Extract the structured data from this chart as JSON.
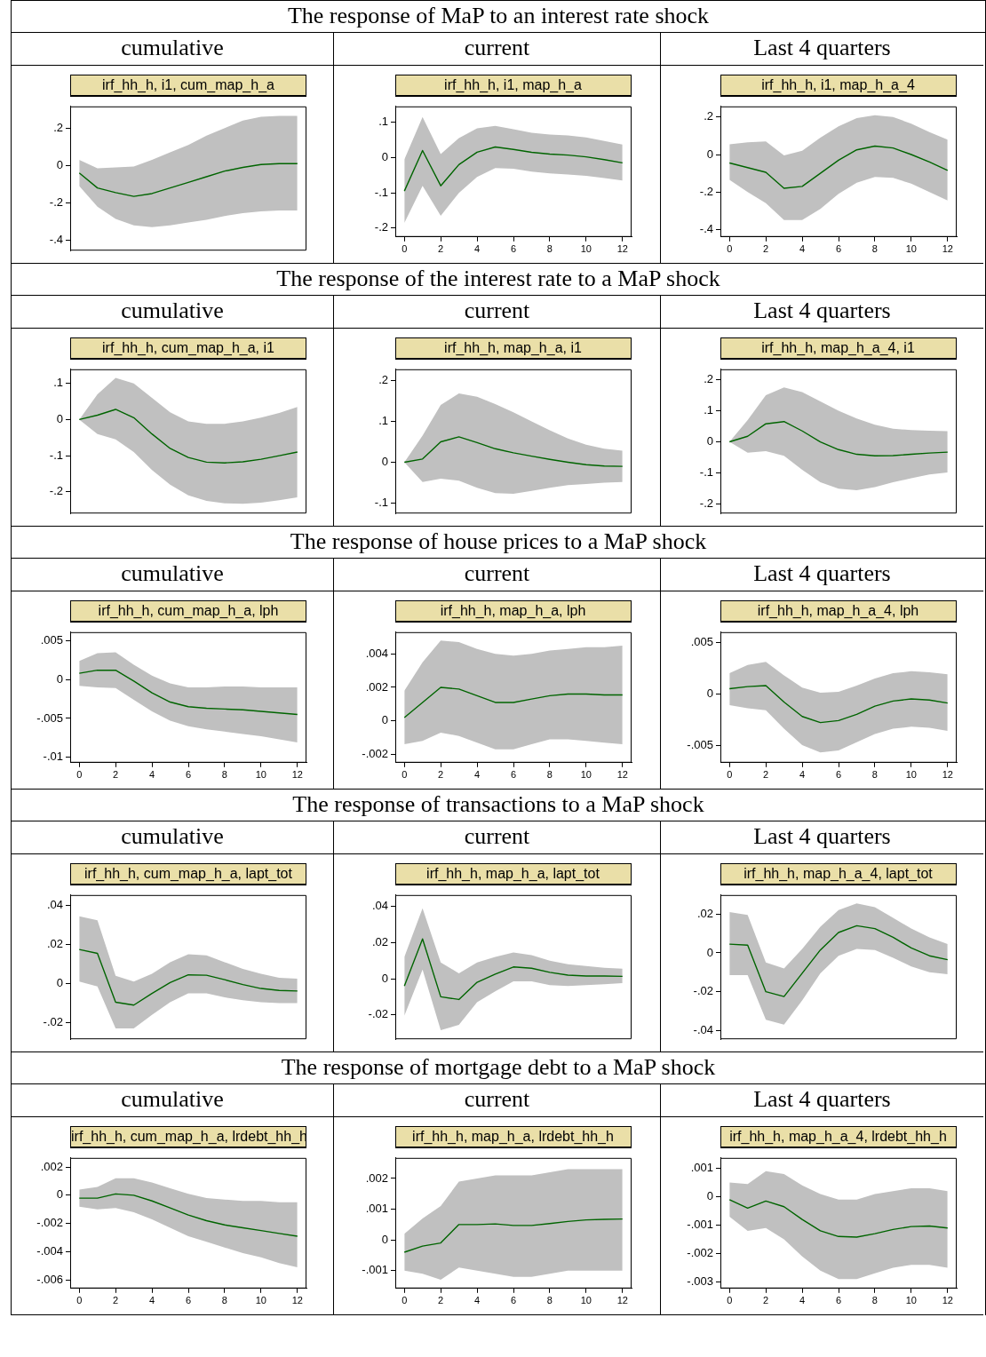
{
  "chart_data": [
    {
      "type": "line",
      "title": "irf_hh_h, i1, cum_map_h_a",
      "subtitle": "cumulative",
      "annotations": [
        "The response of MaP to an interest rate shock"
      ],
      "x": [
        0,
        1,
        2,
        3,
        4,
        5,
        6,
        7,
        8,
        9,
        10,
        11,
        12
      ],
      "xlim": [
        -0.5,
        12.5
      ],
      "ylim": [
        -0.455,
        0.316
      ],
      "yticks": [
        {
          "value": -0.4,
          "label": "-.4"
        },
        {
          "value": -0.2,
          "label": "-.2"
        },
        {
          "value": 0,
          "label": "0"
        },
        {
          "value": 0.2,
          "label": ".2"
        }
      ],
      "tick_labels": "y",
      "series": [
        {
          "color": "#006400",
          "values": [
            -0.04,
            -0.12,
            -0.145,
            -0.165,
            -0.15,
            -0.12,
            -0.09,
            -0.06,
            -0.03,
            -0.01,
            0.005,
            0.01,
            0.01
          ],
          "upper": [
            0.03,
            -0.015,
            -0.01,
            -0.005,
            0.03,
            0.07,
            0.11,
            0.16,
            0.2,
            0.24,
            0.26,
            0.265,
            0.265
          ],
          "lower": [
            -0.11,
            -0.22,
            -0.285,
            -0.32,
            -0.33,
            -0.32,
            -0.305,
            -0.29,
            -0.27,
            -0.255,
            -0.245,
            -0.24,
            -0.24
          ]
        }
      ]
    },
    {
      "type": "line",
      "title": "irf_hh_h, i1, map_h_a",
      "subtitle": "current",
      "x": [
        0,
        1,
        2,
        3,
        4,
        5,
        6,
        7,
        8,
        9,
        10,
        11,
        12
      ],
      "xlim": [
        -0.5,
        12.5
      ],
      "xticks": [
        0,
        2,
        4,
        6,
        8,
        10,
        12
      ],
      "ylim": [
        -0.225,
        0.145
      ],
      "yticks": [
        {
          "value": -0.2,
          "label": "-.2"
        },
        {
          "value": -0.1,
          "label": "-.1"
        },
        {
          "value": 0,
          "label": "0"
        },
        {
          "value": 0.1,
          "label": ".1"
        }
      ],
      "series": [
        {
          "color": "#006400",
          "values": [
            -0.095,
            0.02,
            -0.08,
            -0.02,
            0.015,
            0.03,
            0.023,
            0.015,
            0.01,
            0.007,
            0.002,
            -0.006,
            -0.015
          ],
          "upper": [
            -0.005,
            0.115,
            0.01,
            0.055,
            0.083,
            0.09,
            0.08,
            0.07,
            0.065,
            0.063,
            0.057,
            0.047,
            0.037
          ],
          "lower": [
            -0.185,
            -0.08,
            -0.165,
            -0.1,
            -0.055,
            -0.03,
            -0.032,
            -0.04,
            -0.045,
            -0.048,
            -0.052,
            -0.058,
            -0.065
          ]
        }
      ]
    },
    {
      "type": "line",
      "title": "irf_hh_h, i1, map_h_a_4",
      "subtitle": "Last 4 quarters",
      "x": [
        0,
        1,
        2,
        3,
        4,
        5,
        6,
        7,
        8,
        9,
        10,
        11,
        12
      ],
      "xlim": [
        -0.5,
        12.5
      ],
      "xticks": [
        0,
        2,
        4,
        6,
        8,
        10,
        12
      ],
      "ylim": [
        -0.44,
        0.257
      ],
      "yticks": [
        {
          "value": -0.4,
          "label": "-.4"
        },
        {
          "value": -0.2,
          "label": "-.2"
        },
        {
          "value": 0,
          "label": "0"
        },
        {
          "value": 0.2,
          "label": ".2"
        }
      ],
      "series": [
        {
          "color": "#006400",
          "values": [
            -0.045,
            -0.07,
            -0.095,
            -0.18,
            -0.17,
            -0.1,
            -0.03,
            0.025,
            0.045,
            0.035,
            0,
            -0.04,
            -0.085
          ],
          "upper": [
            0.055,
            0.065,
            0.07,
            -0.005,
            0.02,
            0.09,
            0.15,
            0.195,
            0.21,
            0.2,
            0.165,
            0.12,
            0.08
          ],
          "lower": [
            -0.135,
            -0.2,
            -0.26,
            -0.35,
            -0.35,
            -0.29,
            -0.21,
            -0.15,
            -0.12,
            -0.125,
            -0.155,
            -0.2,
            -0.245
          ]
        }
      ]
    },
    {
      "type": "line",
      "title": "irf_hh_h, cum_map_h_a, i1",
      "subtitle": "cumulative",
      "annotations": [
        "The response of the interest rate to a MaP shock"
      ],
      "x": [
        0,
        1,
        2,
        3,
        4,
        5,
        6,
        7,
        8,
        9,
        10,
        11,
        12
      ],
      "xlim": [
        -0.5,
        12.5
      ],
      "ylim": [
        -0.26,
        0.139
      ],
      "yticks": [
        {
          "value": -0.2,
          "label": "-.2"
        },
        {
          "value": -0.1,
          "label": "-.1"
        },
        {
          "value": 0,
          "label": "0"
        },
        {
          "value": 0.1,
          "label": ".1"
        }
      ],
      "tick_labels": "y",
      "series": [
        {
          "color": "#006400",
          "values": [
            0,
            0.012,
            0.028,
            0.005,
            -0.04,
            -0.08,
            -0.105,
            -0.118,
            -0.12,
            -0.117,
            -0.11,
            -0.1,
            -0.09
          ],
          "upper": [
            0,
            0.07,
            0.115,
            0.1,
            0.06,
            0.02,
            -0.005,
            -0.012,
            -0.012,
            -0.005,
            0.005,
            0.018,
            0.035
          ],
          "lower": [
            0,
            -0.04,
            -0.055,
            -0.09,
            -0.14,
            -0.18,
            -0.21,
            -0.225,
            -0.232,
            -0.233,
            -0.23,
            -0.223,
            -0.215
          ]
        }
      ]
    },
    {
      "type": "line",
      "title": "irf_hh_h, map_h_a, i1",
      "subtitle": "current",
      "x": [
        0,
        1,
        2,
        3,
        4,
        5,
        6,
        7,
        8,
        9,
        10,
        11,
        12
      ],
      "xlim": [
        -0.5,
        12.5
      ],
      "ylim": [
        -0.125,
        0.227
      ],
      "yticks": [
        {
          "value": -0.1,
          "label": "-.1"
        },
        {
          "value": 0,
          "label": "0"
        },
        {
          "value": 0.1,
          "label": ".1"
        },
        {
          "value": 0.2,
          "label": ".2"
        }
      ],
      "tick_labels": "y",
      "series": [
        {
          "color": "#006400",
          "values": [
            0,
            0.008,
            0.05,
            0.062,
            0.048,
            0.033,
            0.023,
            0.015,
            0.007,
            0,
            -0.006,
            -0.009,
            -0.01
          ],
          "upper": [
            0,
            0.065,
            0.14,
            0.168,
            0.16,
            0.142,
            0.122,
            0.1,
            0.078,
            0.058,
            0.043,
            0.033,
            0.028
          ],
          "lower": [
            0,
            -0.048,
            -0.04,
            -0.045,
            -0.062,
            -0.075,
            -0.077,
            -0.07,
            -0.062,
            -0.056,
            -0.053,
            -0.05,
            -0.048
          ]
        }
      ]
    },
    {
      "type": "line",
      "title": "irf_hh_h, map_h_a_4, i1",
      "subtitle": "Last 4 quarters",
      "x": [
        0,
        1,
        2,
        3,
        4,
        5,
        6,
        7,
        8,
        9,
        10,
        11,
        12
      ],
      "xlim": [
        -0.5,
        12.5
      ],
      "ylim": [
        -0.23,
        0.233
      ],
      "yticks": [
        {
          "value": -0.2,
          "label": "-.2"
        },
        {
          "value": -0.1,
          "label": "-.1"
        },
        {
          "value": 0,
          "label": "0"
        },
        {
          "value": 0.1,
          "label": ".1"
        },
        {
          "value": 0.2,
          "label": ".2"
        }
      ],
      "tick_labels": "y",
      "series": [
        {
          "color": "#006400",
          "values": [
            0,
            0.018,
            0.058,
            0.065,
            0.035,
            0,
            -0.025,
            -0.04,
            -0.045,
            -0.044,
            -0.04,
            -0.036,
            -0.033
          ],
          "upper": [
            0,
            0.07,
            0.15,
            0.175,
            0.16,
            0.13,
            0.1,
            0.075,
            0.055,
            0.042,
            0.038,
            0.036,
            0.034
          ],
          "lower": [
            0,
            -0.035,
            -0.03,
            -0.045,
            -0.09,
            -0.13,
            -0.15,
            -0.155,
            -0.145,
            -0.13,
            -0.117,
            -0.105,
            -0.098
          ]
        }
      ]
    },
    {
      "type": "line",
      "title": "irf_hh_h, cum_map_h_a, lph",
      "subtitle": "cumulative",
      "annotations": [
        "The response of house prices to a MaP shock"
      ],
      "x": [
        0,
        1,
        2,
        3,
        4,
        5,
        6,
        7,
        8,
        9,
        10,
        11,
        12
      ],
      "xlim": [
        -0.5,
        12.5
      ],
      "xticks": [
        0,
        2,
        4,
        6,
        8,
        10,
        12
      ],
      "ylim": [
        -0.0107,
        0.0061
      ],
      "yticks": [
        {
          "value": -0.01,
          "label": "-.01"
        },
        {
          "value": -0.005,
          "label": "-.005"
        },
        {
          "value": 0,
          "label": "0"
        },
        {
          "value": 0.005,
          "label": ".005"
        }
      ],
      "series": [
        {
          "color": "#006400",
          "values": [
            0.0008,
            0.0012,
            0.0012,
            -0.0002,
            -0.0017,
            -0.0029,
            -0.0035,
            -0.0037,
            -0.0038,
            -0.0039,
            -0.0041,
            -0.0043,
            -0.0045
          ],
          "upper": [
            0.0024,
            0.0034,
            0.0035,
            0.0019,
            0.0005,
            -0.0005,
            -0.001,
            -0.001,
            -0.0009,
            -0.0009,
            -0.001,
            -0.001,
            -0.001
          ],
          "lower": [
            -0.0008,
            -0.001,
            -0.0011,
            -0.0026,
            -0.0041,
            -0.0053,
            -0.006,
            -0.0064,
            -0.0067,
            -0.007,
            -0.0073,
            -0.0077,
            -0.0081
          ]
        }
      ]
    },
    {
      "type": "line",
      "title": "irf_hh_h, map_h_a, lph",
      "subtitle": "current",
      "x": [
        0,
        1,
        2,
        3,
        4,
        5,
        6,
        7,
        8,
        9,
        10,
        11,
        12
      ],
      "xlim": [
        -0.5,
        12.5
      ],
      "xticks": [
        0,
        2,
        4,
        6,
        8,
        10,
        12
      ],
      "ylim": [
        -0.0025,
        0.0053
      ],
      "yticks": [
        {
          "value": -0.002,
          "label": "-.002"
        },
        {
          "value": 0,
          "label": "0"
        },
        {
          "value": 0.002,
          "label": ".002"
        },
        {
          "value": 0.004,
          "label": ".004"
        }
      ],
      "series": [
        {
          "color": "#006400",
          "values": [
            0.0002,
            0.0011,
            0.002,
            0.0019,
            0.0015,
            0.0011,
            0.0011,
            0.0013,
            0.0015,
            0.0016,
            0.0016,
            0.00155,
            0.00155
          ],
          "upper": [
            0.0018,
            0.0035,
            0.0048,
            0.0047,
            0.0043,
            0.004,
            0.0039,
            0.004,
            0.0042,
            0.0043,
            0.0044,
            0.0044,
            0.0045
          ],
          "lower": [
            -0.0014,
            -0.0012,
            -0.0007,
            -0.0009,
            -0.0013,
            -0.0017,
            -0.0017,
            -0.0014,
            -0.0011,
            -0.0011,
            -0.0012,
            -0.0013,
            -0.0014
          ]
        }
      ]
    },
    {
      "type": "line",
      "title": "irf_hh_h, map_h_a_4, lph",
      "subtitle": "Last 4 quarters",
      "x": [
        0,
        1,
        2,
        3,
        4,
        5,
        6,
        7,
        8,
        9,
        10,
        11,
        12
      ],
      "xlim": [
        -0.5,
        12.5
      ],
      "xticks": [
        0,
        2,
        4,
        6,
        8,
        10,
        12
      ],
      "ylim": [
        -0.0067,
        0.006
      ],
      "yticks": [
        {
          "value": -0.005,
          "label": "-.005"
        },
        {
          "value": 0,
          "label": "0"
        },
        {
          "value": 0.005,
          "label": ".005"
        }
      ],
      "series": [
        {
          "color": "#006400",
          "values": [
            0.0005,
            0.0007,
            0.0008,
            -0.0008,
            -0.0022,
            -0.0028,
            -0.0026,
            -0.002,
            -0.0012,
            -0.0007,
            -0.0005,
            -0.0006,
            -0.0009
          ],
          "upper": [
            0.002,
            0.0028,
            0.0031,
            0.0018,
            0.0006,
            0.0001,
            0.0002,
            0.0008,
            0.0015,
            0.002,
            0.0022,
            0.0021,
            0.0019
          ],
          "lower": [
            -0.0011,
            -0.0014,
            -0.0016,
            -0.0034,
            -0.005,
            -0.0057,
            -0.0055,
            -0.0047,
            -0.0039,
            -0.0034,
            -0.0032,
            -0.0033,
            -0.0036
          ]
        }
      ]
    },
    {
      "type": "line",
      "title": "irf_hh_h, cum_map_h_a, lapt_tot",
      "subtitle": "cumulative",
      "annotations": [
        "The response of transactions to a MaP shock"
      ],
      "x": [
        0,
        1,
        2,
        3,
        4,
        5,
        6,
        7,
        8,
        9,
        10,
        11,
        12
      ],
      "xlim": [
        -0.5,
        12.5
      ],
      "ylim": [
        -0.0285,
        0.0454
      ],
      "yticks": [
        {
          "value": -0.02,
          "label": "-.02"
        },
        {
          "value": 0,
          "label": "0"
        },
        {
          "value": 0.02,
          "label": ".02"
        },
        {
          "value": 0.04,
          "label": ".04"
        }
      ],
      "tick_labels": "y",
      "series": [
        {
          "color": "#006400",
          "values": [
            0.0175,
            0.0155,
            -0.0095,
            -0.011,
            -0.005,
            0.0005,
            0.0045,
            0.0043,
            0.002,
            -0.0005,
            -0.0025,
            -0.0035,
            -0.0038
          ],
          "upper": [
            0.0345,
            0.0325,
            0.004,
            0.001,
            0.005,
            0.011,
            0.015,
            0.0145,
            0.011,
            0.0075,
            0.005,
            0.003,
            0.0025
          ],
          "lower": [
            0.001,
            -0.0015,
            -0.023,
            -0.023,
            -0.016,
            -0.0095,
            -0.005,
            -0.005,
            -0.007,
            -0.0085,
            -0.0095,
            -0.01,
            -0.01
          ]
        }
      ]
    },
    {
      "type": "line",
      "title": "irf_hh_h, map_h_a, lapt_tot",
      "subtitle": "current",
      "x": [
        0,
        1,
        2,
        3,
        4,
        5,
        6,
        7,
        8,
        9,
        10,
        11,
        12
      ],
      "xlim": [
        -0.5,
        12.5
      ],
      "ylim": [
        -0.0335,
        0.0463
      ],
      "yticks": [
        {
          "value": -0.02,
          "label": "-.02"
        },
        {
          "value": 0,
          "label": "0"
        },
        {
          "value": 0.02,
          "label": ".02"
        },
        {
          "value": 0.04,
          "label": ".04"
        }
      ],
      "tick_labels": "y",
      "series": [
        {
          "color": "#006400",
          "values": [
            -0.004,
            0.022,
            -0.01,
            -0.0115,
            -0.002,
            0.0025,
            0.0065,
            0.0058,
            0.0035,
            0.002,
            0.0015,
            0.0015,
            0.0013
          ],
          "upper": [
            0.012,
            0.039,
            0.009,
            0.003,
            0.009,
            0.012,
            0.0145,
            0.013,
            0.01,
            0.008,
            0.007,
            0.006,
            0.0055
          ],
          "lower": [
            -0.0205,
            0.005,
            -0.0285,
            -0.0255,
            -0.013,
            -0.007,
            -0.0015,
            -0.0015,
            -0.0035,
            -0.004,
            -0.0035,
            -0.003,
            -0.0025
          ]
        }
      ]
    },
    {
      "type": "line",
      "title": "irf_hh_h, map_h_a_4, lapt_tot",
      "subtitle": "Last 4 quarters",
      "x": [
        0,
        1,
        2,
        3,
        4,
        5,
        6,
        7,
        8,
        9,
        10,
        11,
        12
      ],
      "xlim": [
        -0.5,
        12.5
      ],
      "ylim": [
        -0.0445,
        0.0298
      ],
      "yticks": [
        {
          "value": -0.04,
          "label": "-.04"
        },
        {
          "value": -0.02,
          "label": "-.02"
        },
        {
          "value": 0,
          "label": "0"
        },
        {
          "value": 0.02,
          "label": ".02"
        }
      ],
      "tick_labels": "y",
      "series": [
        {
          "color": "#006400",
          "values": [
            0.0045,
            0.004,
            -0.02,
            -0.0225,
            -0.0105,
            0.0015,
            0.0105,
            0.014,
            0.0125,
            0.008,
            0.0025,
            -0.0015,
            -0.0035
          ],
          "upper": [
            0.021,
            0.0195,
            -0.005,
            -0.008,
            0.002,
            0.0135,
            0.022,
            0.0255,
            0.0235,
            0.018,
            0.0125,
            0.008,
            0.0045
          ],
          "lower": [
            -0.0115,
            -0.0115,
            -0.0345,
            -0.037,
            -0.0245,
            -0.0105,
            -0.0015,
            0.002,
            0.0015,
            -0.0025,
            -0.007,
            -0.01,
            -0.011
          ]
        }
      ]
    },
    {
      "type": "line",
      "title": "irf_hh_h, cum_map_h_a, lrdebt_hh_h",
      "subtitle": "cumulative",
      "annotations": [
        "The response of mortgage debt to a MaP shock"
      ],
      "x": [
        0,
        1,
        2,
        3,
        4,
        5,
        6,
        7,
        8,
        9,
        10,
        11,
        12
      ],
      "xlim": [
        -0.5,
        12.5
      ],
      "xticks": [
        0,
        2,
        4,
        6,
        8,
        10,
        12
      ],
      "ylim": [
        -0.0066,
        0.00265
      ],
      "yticks": [
        {
          "value": -0.006,
          "label": "-.006"
        },
        {
          "value": -0.004,
          "label": "-.004"
        },
        {
          "value": -0.002,
          "label": "-.002"
        },
        {
          "value": 0,
          "label": "0"
        },
        {
          "value": 0.002,
          "label": ".002"
        }
      ],
      "series": [
        {
          "color": "#006400",
          "values": [
            -0.0002,
            -0.0002,
            0.0001,
            0,
            -0.0004,
            -0.0009,
            -0.0014,
            -0.0018,
            -0.0021,
            -0.0023,
            -0.0025,
            -0.0027,
            -0.0029
          ],
          "upper": [
            0.0004,
            0.0006,
            0.0012,
            0.0012,
            0.0009,
            0.0005,
            0.0001,
            -0.0002,
            -0.0003,
            -0.0004,
            -0.0004,
            -0.0005,
            -0.0005
          ],
          "lower": [
            -0.0008,
            -0.001,
            -0.0009,
            -0.0012,
            -0.0017,
            -0.0023,
            -0.0029,
            -0.0033,
            -0.0037,
            -0.0041,
            -0.0044,
            -0.0048,
            -0.0051
          ]
        }
      ]
    },
    {
      "type": "line",
      "title": "irf_hh_h, map_h_a, lrdebt_hh_h",
      "subtitle": "current",
      "x": [
        0,
        1,
        2,
        3,
        4,
        5,
        6,
        7,
        8,
        9,
        10,
        11,
        12
      ],
      "xlim": [
        -0.5,
        12.5
      ],
      "xticks": [
        0,
        2,
        4,
        6,
        8,
        10,
        12
      ],
      "ylim": [
        -0.00158,
        0.00267
      ],
      "yticks": [
        {
          "value": -0.001,
          "label": "-.001"
        },
        {
          "value": 0,
          "label": "0"
        },
        {
          "value": 0.001,
          "label": ".001"
        },
        {
          "value": 0.002,
          "label": ".002"
        }
      ],
      "series": [
        {
          "color": "#006400",
          "values": [
            -0.0004,
            -0.0002,
            -0.0001,
            0.0005,
            0.0005,
            0.00052,
            0.00047,
            0.00047,
            0.00053,
            0.0006,
            0.00065,
            0.00067,
            0.00068
          ],
          "upper": [
            0.0002,
            0.0007,
            0.0011,
            0.0019,
            0.002,
            0.0021,
            0.0021,
            0.0021,
            0.0022,
            0.0023,
            0.0023,
            0.0023,
            0.0023
          ],
          "lower": [
            -0.001,
            -0.0011,
            -0.0013,
            -0.0009,
            -0.001,
            -0.0011,
            -0.0012,
            -0.0012,
            -0.0011,
            -0.001,
            -0.001,
            -0.001,
            -0.001
          ]
        }
      ]
    },
    {
      "type": "line",
      "title": "irf_hh_h, map_h_a_4, lrdebt_hh_h",
      "subtitle": "Last 4 quarters",
      "x": [
        0,
        1,
        2,
        3,
        4,
        5,
        6,
        7,
        8,
        9,
        10,
        11,
        12
      ],
      "xlim": [
        -0.5,
        12.5
      ],
      "xticks": [
        0,
        2,
        4,
        6,
        8,
        10,
        12
      ],
      "ylim": [
        -0.00323,
        0.00137
      ],
      "yticks": [
        {
          "value": -0.003,
          "label": "-.003"
        },
        {
          "value": -0.002,
          "label": "-.002"
        },
        {
          "value": -0.001,
          "label": "-.001"
        },
        {
          "value": 0,
          "label": "0"
        },
        {
          "value": 0.001,
          "label": ".001"
        }
      ],
      "series": [
        {
          "color": "#006400",
          "values": [
            -0.0001,
            -0.0004,
            -0.00015,
            -0.00035,
            -0.0008,
            -0.0012,
            -0.0014,
            -0.00142,
            -0.0013,
            -0.00115,
            -0.00105,
            -0.00103,
            -0.0011
          ],
          "upper": [
            0.0005,
            0.00045,
            0.0009,
            0.0008,
            0.0004,
            0.0001,
            -0.0001,
            -0.0001,
            0.0001,
            0.0002,
            0.0003,
            0.0003,
            0.0002
          ],
          "lower": [
            -0.0007,
            -0.0012,
            -0.0011,
            -0.0015,
            -0.0021,
            -0.0026,
            -0.0029,
            -0.0029,
            -0.0027,
            -0.0025,
            -0.0024,
            -0.0024,
            -0.0025
          ]
        }
      ]
    }
  ]
}
